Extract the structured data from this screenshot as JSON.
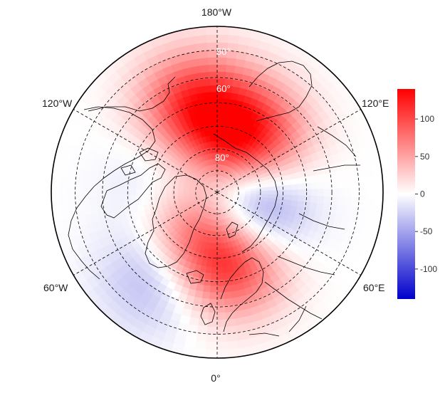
{
  "map": {
    "projection": "north-polar-stereographic",
    "longitude_labels": {
      "top": "180°W",
      "upper_left": "120°W",
      "upper_right": "120°E",
      "lower_left": "60°W",
      "lower_right": "60°E",
      "bottom": "0°"
    },
    "latitude_labels": [
      "80°",
      "60°",
      "50°"
    ]
  },
  "colorbar": {
    "colors": {
      "max": "#ff0000",
      "mid": "#ffffff",
      "min": "#0000cc"
    },
    "ticks": [
      "100",
      "50",
      "0",
      "-50",
      "-100"
    ],
    "tick_values": [
      100,
      50,
      0,
      -50,
      -100
    ],
    "range": [
      -140,
      140
    ]
  },
  "anomaly_centers": [
    {
      "sign": "positive",
      "location": "east-siberia",
      "lon": 150,
      "lat": 62,
      "value": 130
    },
    {
      "sign": "negative",
      "location": "barents-kara-sea",
      "lon": 55,
      "lat": 74,
      "value": -130
    },
    {
      "sign": "positive",
      "location": "scandinavia-europe",
      "lon": 12,
      "lat": 60,
      "value": 140
    },
    {
      "sign": "positive",
      "location": "greenland",
      "lon": -40,
      "lat": 73,
      "value": 85
    },
    {
      "sign": "positive",
      "location": "north-pacific",
      "lon": -165,
      "lat": 50,
      "value": 110
    },
    {
      "sign": "negative",
      "location": "canadian-arctic",
      "lon": -100,
      "lat": 68,
      "value": -40
    },
    {
      "sign": "negative",
      "location": "north-atlantic",
      "lon": -35,
      "lat": 45,
      "value": -50
    }
  ]
}
